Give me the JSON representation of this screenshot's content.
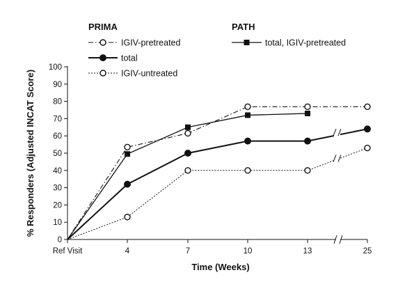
{
  "chart_data": {
    "type": "line",
    "xlabel": "Time (Weeks)",
    "ylabel": "% Responders (Adjusted INCAT Score)",
    "categories": [
      "Ref Visit",
      "4",
      "7",
      "10",
      "13",
      "25"
    ],
    "yticks": [
      0,
      10,
      20,
      30,
      40,
      50,
      60,
      70,
      80,
      90,
      100
    ],
    "ylim": [
      0,
      100
    ],
    "x_axis_break": "between 13 and 25",
    "legend": {
      "groups": [
        {
          "title": "PRIMA",
          "entries": [
            "IGIV-pretreated",
            "total",
            "IGIV-untreated"
          ]
        },
        {
          "title": "PATH",
          "entries": [
            "total, IGIV-pretreated"
          ]
        }
      ],
      "placement": "top"
    },
    "series": [
      {
        "name": "IGIV-pretreated",
        "group": "PRIMA",
        "style": "dash-dot",
        "marker": "open-circle",
        "values": [
          0,
          53.5,
          61.5,
          76.9,
          76.9,
          76.9
        ]
      },
      {
        "name": "total",
        "group": "PRIMA",
        "style": "solid-thick",
        "marker": "filled-circle",
        "values": [
          0,
          32,
          50,
          57,
          57,
          64
        ]
      },
      {
        "name": "IGIV-untreated",
        "group": "PRIMA",
        "style": "dotted",
        "marker": "open-circle",
        "values": [
          0,
          13,
          40,
          40,
          40,
          53
        ]
      },
      {
        "name": "total, IGIV-pretreated",
        "group": "PATH",
        "style": "solid",
        "marker": "filled-square",
        "values": [
          0,
          49.5,
          65,
          72,
          73,
          null
        ]
      }
    ],
    "colors": {
      "ink": "#111111",
      "background": "#ffffff"
    }
  }
}
